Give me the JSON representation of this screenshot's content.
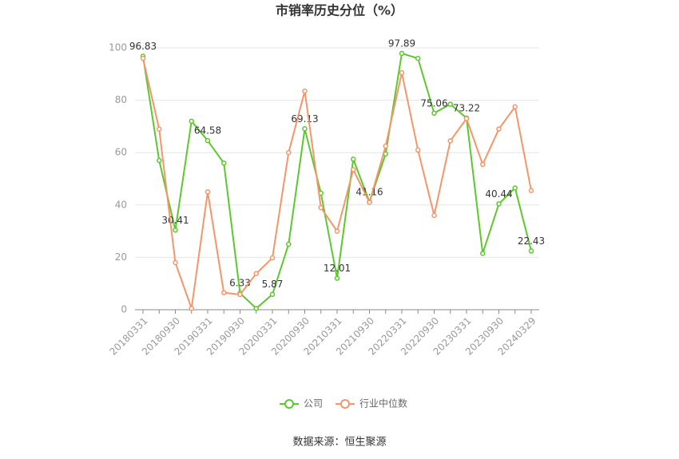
{
  "chart_data": {
    "type": "line",
    "title": "市销率历史分位（%）",
    "categories": [
      "20180331",
      null,
      "20180930",
      null,
      "20190331",
      null,
      "20190930",
      null,
      "20200331",
      null,
      "20200930",
      null,
      "20210331",
      null,
      "20210930",
      null,
      "20220331",
      null,
      "20220930",
      null,
      "20230331",
      null,
      "20230930",
      null,
      "20240329"
    ],
    "series": [
      {
        "name": "公司",
        "color": "#5cc82e",
        "values": [
          96.83,
          57,
          30.41,
          72,
          64.58,
          56,
          6.33,
          0.5,
          5.87,
          25,
          69.13,
          44.5,
          12.01,
          57.5,
          41.16,
          59.5,
          97.89,
          96,
          75.06,
          78.5,
          73.22,
          21.5,
          40.44,
          46.5,
          22.43
        ]
      },
      {
        "name": "行业中位数",
        "color": "#f4956a",
        "values": [
          96,
          69,
          18,
          0.5,
          45,
          6.5,
          5.8,
          13.8,
          19.8,
          60,
          83.5,
          39,
          30,
          53.5,
          41,
          62.5,
          90.5,
          61,
          36,
          64.5,
          73,
          55.5,
          69,
          77.5,
          45.5
        ]
      }
    ],
    "ylim": [
      0,
      100
    ],
    "yticks": [
      0,
      20,
      40,
      60,
      80,
      100
    ],
    "grid": true,
    "source": "数据来源：恒生聚源"
  }
}
